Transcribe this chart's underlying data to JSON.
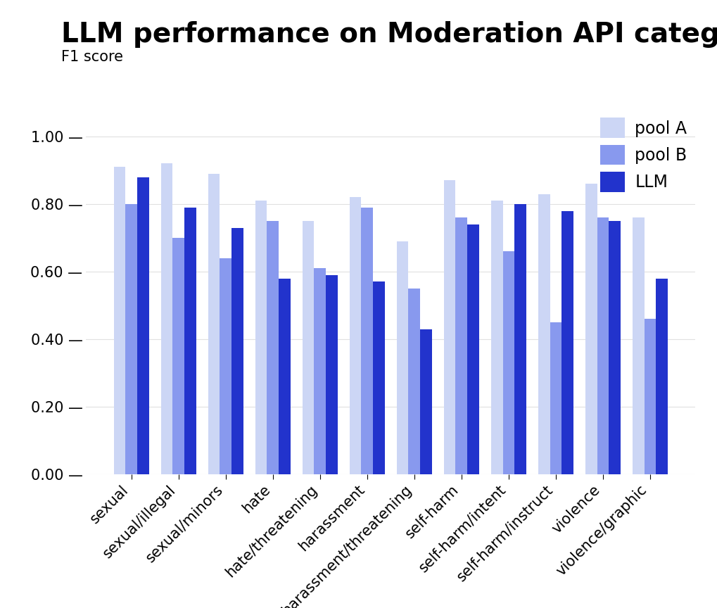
{
  "title": "LLM performance on Moderation API categories",
  "ylabel": "F1 score",
  "categories": [
    "sexual",
    "sexual/illegal",
    "sexual/minors",
    "hate",
    "hate/threatening",
    "harassment",
    "harassment/threatening",
    "self-harm",
    "self-harm/intent",
    "self-harm/instruct",
    "violence",
    "violence/graphic"
  ],
  "pool_A": [
    0.91,
    0.92,
    0.89,
    0.81,
    0.75,
    0.82,
    0.69,
    0.87,
    0.81,
    0.83,
    0.86,
    0.76
  ],
  "pool_B": [
    0.8,
    0.7,
    0.64,
    0.75,
    0.61,
    0.79,
    0.55,
    0.76,
    0.66,
    0.45,
    0.76,
    0.46
  ],
  "LLM": [
    0.88,
    0.79,
    0.73,
    0.58,
    0.59,
    0.57,
    0.43,
    0.74,
    0.8,
    0.78,
    0.75,
    0.58
  ],
  "color_pool_A": "#ccd6f5",
  "color_pool_B": "#8899ee",
  "color_LLM": "#2233cc",
  "ylim": [
    0.0,
    1.08
  ],
  "yticks": [
    0.0,
    0.2,
    0.4,
    0.6,
    0.8,
    1.0
  ],
  "background_color": "#ffffff",
  "grid_color": "#e0e0e0",
  "title_fontsize": 28,
  "ylabel_fontsize": 15,
  "tick_fontsize": 15,
  "legend_fontsize": 17,
  "bar_width": 0.25
}
